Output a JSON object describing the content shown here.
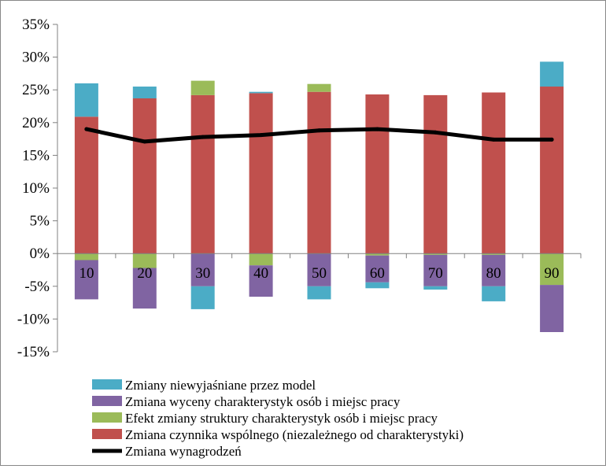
{
  "chart_data": {
    "type": "bar",
    "stacked": true,
    "categories": [
      "10",
      "20",
      "30",
      "40",
      "50",
      "60",
      "70",
      "80",
      "90"
    ],
    "ylim": [
      -15,
      35
    ],
    "y_ticks": [
      -15,
      -10,
      -5,
      0,
      5,
      10,
      15,
      20,
      25,
      30,
      35
    ],
    "y_tick_labels": [
      "-15%",
      "-10%",
      "-5%",
      "0%",
      "5%",
      "10%",
      "15%",
      "20%",
      "25%",
      "30%",
      "35%"
    ],
    "grid": false,
    "legend_position": "bottom",
    "series": [
      {
        "name": "Zmiana czynnika wspólnego (niezależnego od charakterystyki)",
        "kind": "bar",
        "color": "#C0504D",
        "values": [
          20.9,
          23.7,
          24.2,
          24.5,
          24.7,
          24.3,
          24.2,
          24.6,
          25.5
        ]
      },
      {
        "name": "Efekt zmiany struktury charakterystyk osób i miejsc pracy",
        "kind": "bar",
        "color": "#9BBB59",
        "values": [
          -1.0,
          -2.2,
          2.2,
          -1.8,
          1.2,
          -0.3,
          -0.2,
          -0.2,
          -4.8
        ]
      },
      {
        "name": "Zmiana wyceny charakterystyk osób i miejsc pracy",
        "kind": "bar",
        "color": "#8064A2",
        "values": [
          -6.0,
          -6.2,
          -5.0,
          -4.8,
          -5.0,
          -4.1,
          -4.8,
          -4.8,
          -7.2
        ]
      },
      {
        "name": "Zmiany niewyjaśniane przez model",
        "kind": "bar",
        "color": "#4BACC6",
        "values": [
          5.1,
          1.8,
          -3.5,
          0.2,
          -2.0,
          -0.9,
          -0.5,
          -2.3,
          3.8
        ]
      },
      {
        "name": "Zmiana wynagrodzeń",
        "kind": "line",
        "color": "#000000",
        "values": [
          19.0,
          17.1,
          17.8,
          18.1,
          18.8,
          19.0,
          18.5,
          17.4,
          17.4
        ]
      }
    ],
    "legend_order": [
      "Zmiany niewyjaśniane przez model",
      "Zmiana wyceny charakterystyk osób i miejsc pracy",
      "Efekt zmiany struktury charakterystyk osób i miejsc pracy",
      "Zmiana czynnika wspólnego (niezależnego od charakterystyki)",
      "Zmiana wynagrodzeń"
    ]
  }
}
